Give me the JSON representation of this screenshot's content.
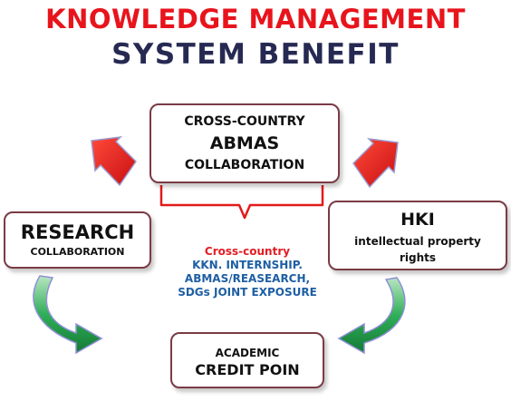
{
  "title": {
    "line1": "KNOWLEDGE MANAGEMENT",
    "line2": "SYSTEM  BENEFIT"
  },
  "nodes": {
    "top": {
      "line1": "CROSS-COUNTRY",
      "line2": "ABMAS",
      "line3": "COLLABORATION"
    },
    "left": {
      "line1": "RESEARCH",
      "line2": "COLLABORATION"
    },
    "right": {
      "line1": "HKI",
      "line2": "intellectual property",
      "line3": "rights"
    },
    "bottom": {
      "line1": "ACADEMIC",
      "line2": "CREDIT POIN"
    }
  },
  "center": {
    "line1": "Cross-country",
    "line2": "KKN. INTERNSHIP.",
    "line3": "ABMAS/REASEARCH,",
    "line4": "SDGs JOINT EXPOSURE"
  },
  "colors": {
    "title_red": "#e8141c",
    "title_navy": "#262a52",
    "box_border": "#7a3b45",
    "arrow_red": "#e21a1a",
    "arrow_green": "#1f9a45",
    "center_red": "#e11d23",
    "center_blue": "#1e5fa3"
  },
  "icons": {
    "down_arrows": "red-block-arrow",
    "curved_arrows": "green-curved-arrow",
    "brace": "red-brace"
  }
}
